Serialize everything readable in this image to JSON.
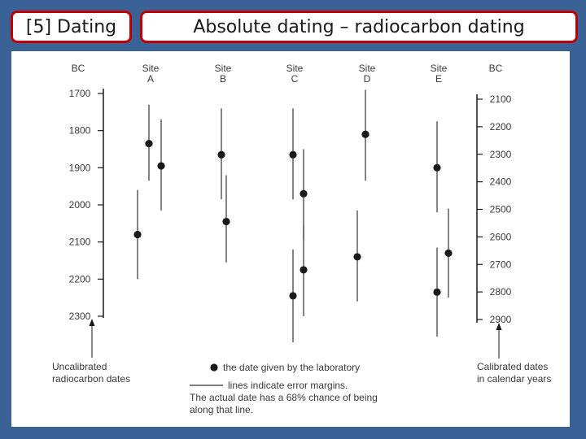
{
  "header": {
    "section": "[5] Dating",
    "title": "Absolute dating – radiocarbon dating"
  },
  "chart_data": {
    "type": "scatter",
    "left_axis": {
      "unit_label": "BC",
      "ticks": [
        1700,
        1800,
        1900,
        2000,
        2100,
        2200,
        2300
      ],
      "ylim": [
        1700,
        2300
      ],
      "label": [
        "Uncalibrated",
        "radiocarbon dates"
      ]
    },
    "right_axis": {
      "unit_label": "BC",
      "ticks": [
        2100,
        2200,
        2300,
        2400,
        2500,
        2600,
        2700,
        2800,
        2900
      ],
      "label": [
        "Calibrated dates",
        "in calendar years"
      ]
    },
    "sites": [
      {
        "label": [
          "Site",
          "A"
        ]
      },
      {
        "label": [
          "Site",
          "B"
        ]
      },
      {
        "label": [
          "Site",
          "C"
        ]
      },
      {
        "label": [
          "Site",
          "D"
        ]
      },
      {
        "label": [
          "Site",
          "E"
        ]
      }
    ],
    "points": [
      {
        "site": 0,
        "y": 2080,
        "low": 1960,
        "high": 2200
      },
      {
        "site": 0,
        "y": 1835,
        "low": 1730,
        "high": 1935
      },
      {
        "site": 0,
        "y": 1895,
        "low": 1770,
        "high": 2015
      },
      {
        "site": 1,
        "y": 1865,
        "low": 1740,
        "high": 1985
      },
      {
        "site": 1,
        "y": 2045,
        "low": 1920,
        "high": 2155
      },
      {
        "site": 2,
        "y": 1865,
        "low": 1740,
        "high": 1985
      },
      {
        "site": 2,
        "y": 1970,
        "low": 1850,
        "high": 2095
      },
      {
        "site": 2,
        "y": 2245,
        "low": 2120,
        "high": 2370
      },
      {
        "site": 2,
        "y": 2175,
        "low": 2055,
        "high": 2300
      },
      {
        "site": 3,
        "y": 1810,
        "low": 1690,
        "high": 1935
      },
      {
        "site": 3,
        "y": 2140,
        "low": 2015,
        "high": 2260
      },
      {
        "site": 4,
        "y": 1900,
        "low": 1775,
        "high": 2020
      },
      {
        "site": 4,
        "y": 2235,
        "low": 2115,
        "high": 2355
      },
      {
        "site": 4,
        "y": 2130,
        "low": 2010,
        "high": 2250
      }
    ],
    "legend": {
      "dot": "the date given by the laboratory",
      "line": [
        "lines indicate error margins.",
        "The actual date has a 68% chance of being",
        "along that line."
      ]
    },
    "colors": {
      "marks": "#1a1a1a",
      "text": "#3a3a3a"
    }
  }
}
